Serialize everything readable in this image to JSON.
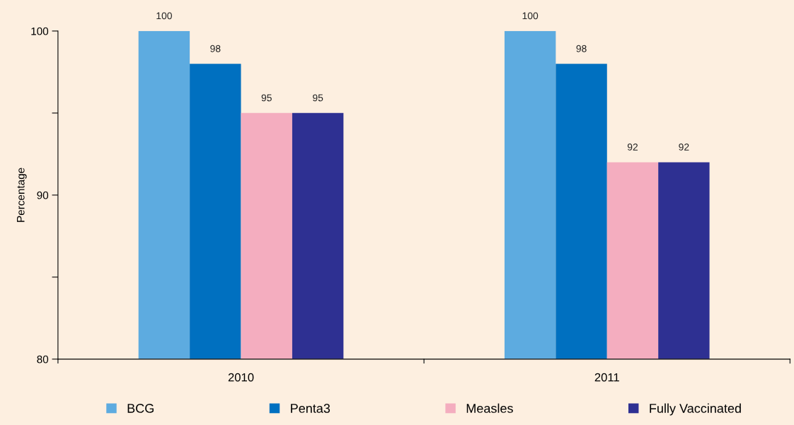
{
  "chart_data": {
    "type": "bar",
    "ylabel": "Percentage",
    "categories": [
      "2010",
      "2011"
    ],
    "series": [
      {
        "name": "BCG",
        "color": "#5dabe0",
        "values": [
          100,
          100
        ]
      },
      {
        "name": "Penta3",
        "color": "#0070c0",
        "values": [
          98,
          98
        ]
      },
      {
        "name": "Measles",
        "color": "#f4adbf",
        "values": [
          95,
          92
        ]
      },
      {
        "name": "Fully Vaccinated",
        "color": "#2e3092",
        "values": [
          95,
          92
        ]
      }
    ],
    "ylim": [
      80,
      100
    ],
    "yticks": [
      80,
      {
        "value": 85,
        "label": null
      },
      90,
      {
        "value": 95,
        "label": null
      },
      100
    ],
    "data_labels": true,
    "grid": false,
    "legend": "bottom"
  }
}
